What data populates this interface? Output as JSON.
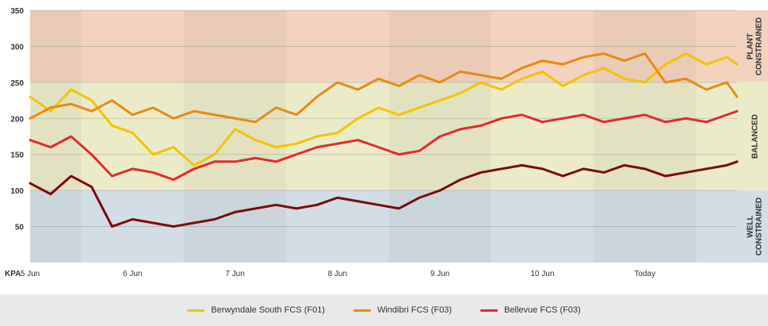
{
  "chart_data": {
    "type": "line",
    "y_unit_label": "KPA",
    "ylim": [
      0,
      350
    ],
    "y_ticks": [
      50,
      100,
      150,
      200,
      250,
      300,
      350
    ],
    "x_ticks": [
      "5 Jun",
      "6 Jun",
      "7 Jun",
      "8 Jun",
      "9 Jun",
      "10 Jun",
      "Today"
    ],
    "xlim": [
      0,
      6.9
    ],
    "grid": true,
    "legend_position": "bottom",
    "zones": [
      {
        "label": "PLANT CONSTRAINED",
        "from": 250,
        "to": 350,
        "color": "#f4d2bd"
      },
      {
        "label": "BALANCED",
        "from": 100,
        "to": 250,
        "color": "#ecebc8"
      },
      {
        "label": "WELL CONSTRAINED",
        "from": 0,
        "to": 100,
        "color": "#d3dde5"
      }
    ],
    "series": [
      {
        "name": "Berwyndale South FCS (F01)",
        "color": "#f3c300",
        "x": [
          0,
          0.2,
          0.4,
          0.6,
          0.8,
          1.0,
          1.2,
          1.4,
          1.6,
          1.8,
          2.0,
          2.2,
          2.4,
          2.6,
          2.8,
          3.0,
          3.2,
          3.4,
          3.6,
          3.8,
          4.0,
          4.2,
          4.4,
          4.6,
          4.8,
          5.0,
          5.2,
          5.4,
          5.6,
          5.8,
          6.0,
          6.2,
          6.4,
          6.6,
          6.8,
          6.9
        ],
        "values": [
          230,
          210,
          240,
          225,
          190,
          180,
          150,
          160,
          135,
          150,
          185,
          170,
          160,
          165,
          175,
          180,
          200,
          215,
          205,
          215,
          225,
          235,
          250,
          240,
          255,
          265,
          245,
          260,
          270,
          255,
          250,
          275,
          290,
          275,
          285,
          275
        ]
      },
      {
        "name": "Windibri FCS (F03)",
        "color": "#e68a12",
        "x": [
          0,
          0.2,
          0.4,
          0.6,
          0.8,
          1.0,
          1.2,
          1.4,
          1.6,
          1.8,
          2.0,
          2.2,
          2.4,
          2.6,
          2.8,
          3.0,
          3.2,
          3.4,
          3.6,
          3.8,
          4.0,
          4.2,
          4.4,
          4.6,
          4.8,
          5.0,
          5.2,
          5.4,
          5.6,
          5.8,
          6.0,
          6.2,
          6.4,
          6.6,
          6.8,
          6.9
        ],
        "values": [
          200,
          215,
          220,
          210,
          225,
          205,
          215,
          200,
          210,
          205,
          200,
          195,
          215,
          205,
          230,
          250,
          240,
          255,
          245,
          260,
          250,
          265,
          260,
          255,
          270,
          280,
          275,
          285,
          290,
          280,
          290,
          250,
          255,
          240,
          250,
          230
        ]
      },
      {
        "name": "Bellevue FCS (F03)",
        "color": "#e22b2b",
        "x": [
          0,
          0.2,
          0.4,
          0.6,
          0.8,
          1.0,
          1.2,
          1.4,
          1.6,
          1.8,
          2.0,
          2.2,
          2.4,
          2.6,
          2.8,
          3.0,
          3.2,
          3.4,
          3.6,
          3.8,
          4.0,
          4.2,
          4.4,
          4.6,
          4.8,
          5.0,
          5.2,
          5.4,
          5.6,
          5.8,
          6.0,
          6.2,
          6.4,
          6.6,
          6.8,
          6.9
        ],
        "values": [
          170,
          160,
          175,
          150,
          120,
          130,
          125,
          115,
          130,
          140,
          140,
          145,
          140,
          150,
          160,
          165,
          170,
          160,
          150,
          155,
          175,
          185,
          190,
          200,
          205,
          195,
          200,
          205,
          195,
          200,
          205,
          195,
          200,
          195,
          205,
          210
        ]
      },
      {
        "name": "",
        "color": "#7a0a0a",
        "x": [
          0,
          0.2,
          0.4,
          0.6,
          0.8,
          1.0,
          1.2,
          1.4,
          1.6,
          1.8,
          2.0,
          2.2,
          2.4,
          2.6,
          2.8,
          3.0,
          3.2,
          3.4,
          3.6,
          3.8,
          4.0,
          4.2,
          4.4,
          4.6,
          4.8,
          5.0,
          5.2,
          5.4,
          5.6,
          5.8,
          6.0,
          6.2,
          6.4,
          6.6,
          6.8,
          6.9
        ],
        "values": [
          110,
          95,
          120,
          105,
          50,
          60,
          55,
          50,
          55,
          60,
          70,
          75,
          80,
          75,
          80,
          90,
          85,
          80,
          75,
          90,
          100,
          115,
          125,
          130,
          135,
          130,
          120,
          130,
          125,
          135,
          130,
          120,
          125,
          130,
          135,
          140
        ]
      }
    ]
  }
}
